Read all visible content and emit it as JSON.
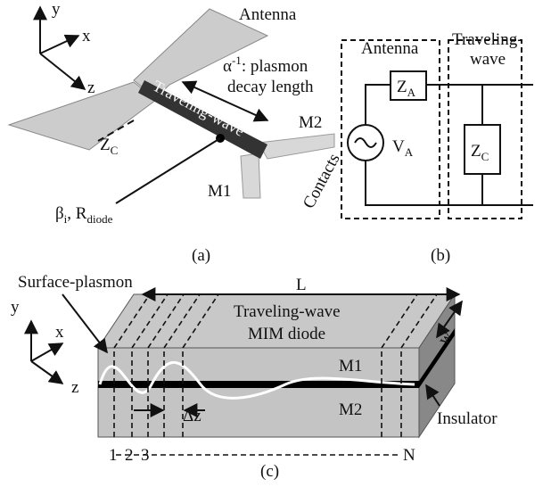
{
  "panel_a": {
    "axes": {
      "y": "y",
      "x": "x",
      "z": "z"
    },
    "antenna": "Antenna",
    "decay": {
      "alpha": "α",
      "sup": "-1",
      "rest": ": plasmon",
      "line2": "decay length"
    },
    "traveling_wave": "Traveling-wave",
    "zc": {
      "main": "Z",
      "sub": "C"
    },
    "m2": "M2",
    "m1": "M1",
    "contacts": "Contacts",
    "beta": {
      "main": "β",
      "sub": "i",
      "sep": ", R",
      "sub2": "diode"
    },
    "caption": "(a)"
  },
  "panel_b": {
    "antenna": "Antenna",
    "traveling_wave": [
      "Traveling-",
      "wave"
    ],
    "za": {
      "main": "Z",
      "sub": "A"
    },
    "va": {
      "main": "V",
      "sub": "A"
    },
    "zc": {
      "main": "Z",
      "sub": "C"
    },
    "caption": "(b)"
  },
  "panel_c": {
    "axes": {
      "y": "y",
      "x": "x",
      "z": "z"
    },
    "surface_plasmon": "Surface-plasmon",
    "length": "L",
    "title": [
      "Traveling-wave",
      "MIM diode"
    ],
    "m1": "M1",
    "m2": "M2",
    "width": "w",
    "insulator": "Insulator",
    "dz": "Δz",
    "sections": [
      "1",
      "2",
      "3",
      "N"
    ],
    "caption": "(c)"
  }
}
